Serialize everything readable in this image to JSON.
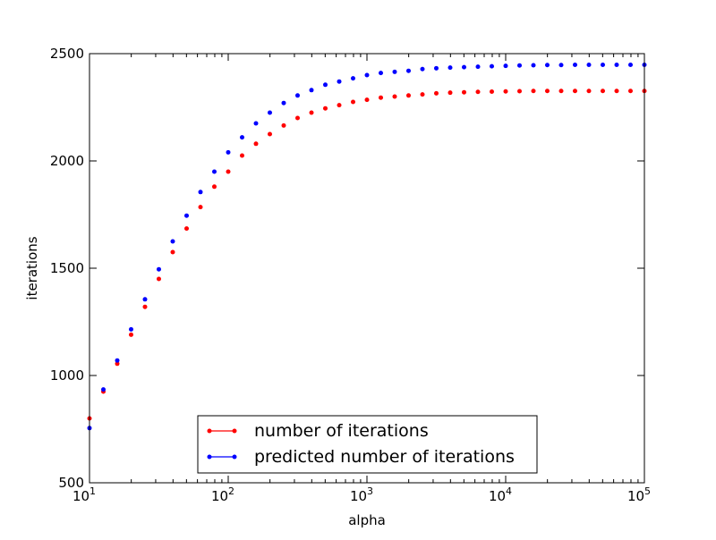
{
  "chart_data": {
    "type": "scatter",
    "title": "",
    "xlabel": "alpha",
    "ylabel": "iterations",
    "xscale": "log",
    "xlim": [
      10,
      100000
    ],
    "ylim": [
      500,
      2500
    ],
    "grid": false,
    "legend_position": "lower center",
    "x_ticks": [
      {
        "value": 10,
        "base": "10",
        "exp": "1"
      },
      {
        "value": 100,
        "base": "10",
        "exp": "2"
      },
      {
        "value": 1000,
        "base": "10",
        "exp": "3"
      },
      {
        "value": 10000,
        "base": "10",
        "exp": "4"
      },
      {
        "value": 100000,
        "base": "10",
        "exp": "5"
      }
    ],
    "y_ticks": [
      {
        "value": 500,
        "label": "500"
      },
      {
        "value": 1000,
        "label": "1000"
      },
      {
        "value": 1500,
        "label": "1500"
      },
      {
        "value": 2000,
        "label": "2000"
      },
      {
        "value": 2500,
        "label": "2500"
      }
    ],
    "x": [
      10,
      12.59,
      15.85,
      19.95,
      25.12,
      31.62,
      39.81,
      50.12,
      63.1,
      79.43,
      100,
      125.9,
      158.5,
      199.5,
      251.2,
      316.2,
      398.1,
      501.2,
      631,
      794.3,
      1000,
      1259,
      1585,
      1995,
      2512,
      3162,
      3981,
      5012,
      6310,
      7943,
      10000,
      12590,
      15850,
      19950,
      25120,
      31620,
      39810,
      50120,
      63100,
      79430,
      100000
    ],
    "series": [
      {
        "name": "number of iterations",
        "color": "#ff0000",
        "values": [
          800,
          925,
          1055,
          1190,
          1320,
          1450,
          1575,
          1685,
          1785,
          1880,
          1950,
          2025,
          2080,
          2125,
          2165,
          2200,
          2225,
          2245,
          2260,
          2275,
          2285,
          2295,
          2300,
          2305,
          2310,
          2315,
          2318,
          2320,
          2322,
          2323,
          2324,
          2325,
          2326,
          2326,
          2326,
          2326,
          2326,
          2326,
          2326,
          2326,
          2326
        ]
      },
      {
        "name": "predicted number of iterations",
        "color": "#0000ff",
        "values": [
          755,
          935,
          1070,
          1215,
          1355,
          1495,
          1625,
          1745,
          1855,
          1950,
          2040,
          2110,
          2175,
          2225,
          2270,
          2305,
          2330,
          2355,
          2370,
          2385,
          2400,
          2410,
          2415,
          2420,
          2428,
          2432,
          2435,
          2437,
          2439,
          2441,
          2443,
          2445,
          2446,
          2447,
          2447,
          2448,
          2448,
          2448,
          2448,
          2448,
          2448
        ]
      }
    ]
  }
}
